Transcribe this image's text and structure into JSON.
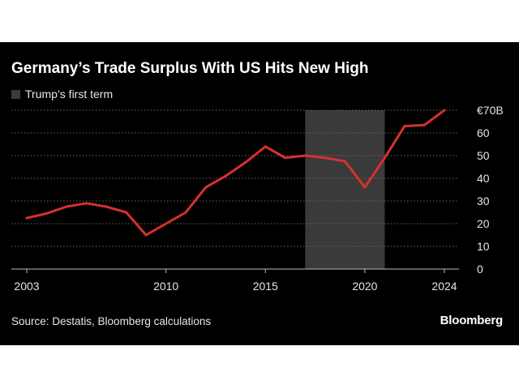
{
  "title": "Germany’s Trade Surplus With US Hits New High",
  "legend_label": "Trump’s first term",
  "source": "Source: Destatis, Bloomberg calculations",
  "brand": "Bloomberg",
  "colors": {
    "background": "#000000",
    "line": "#d7312b",
    "shade": "#3a3a3a",
    "grid": "#666666",
    "text": "#e6e6e6"
  },
  "chart_data": {
    "type": "line",
    "title": "Germany’s Trade Surplus With US Hits New High",
    "xlabel": "",
    "ylabel": "",
    "xlim": [
      2003,
      2024
    ],
    "ylim": [
      0,
      70
    ],
    "grid": true,
    "y_ticks": [
      0,
      10,
      20,
      30,
      40,
      50,
      60,
      70
    ],
    "y_tick_labels": [
      "0",
      "10",
      "20",
      "30",
      "40",
      "50",
      "60",
      "€70B"
    ],
    "x_ticks": [
      2003,
      2010,
      2015,
      2020,
      2024
    ],
    "x_tick_labels": [
      "2003",
      "2010",
      "2015",
      "2020",
      "2024"
    ],
    "shaded_region": {
      "label": "Trump’s first term",
      "x_start": 2017,
      "x_end": 2021
    },
    "series": [
      {
        "x": [
          2003,
          2004,
          2005,
          2006,
          2007,
          2008,
          2009,
          2010,
          2011,
          2012,
          2013,
          2014,
          2015,
          2016,
          2017,
          2018,
          2019,
          2020,
          2021,
          2022,
          2023,
          2024
        ],
        "values": [
          22.5,
          24.5,
          27.5,
          29,
          27.5,
          25,
          15,
          20,
          25,
          36,
          41,
          47,
          54,
          49,
          50,
          49,
          47.5,
          36,
          49,
          63,
          63.5,
          70
        ]
      }
    ]
  }
}
